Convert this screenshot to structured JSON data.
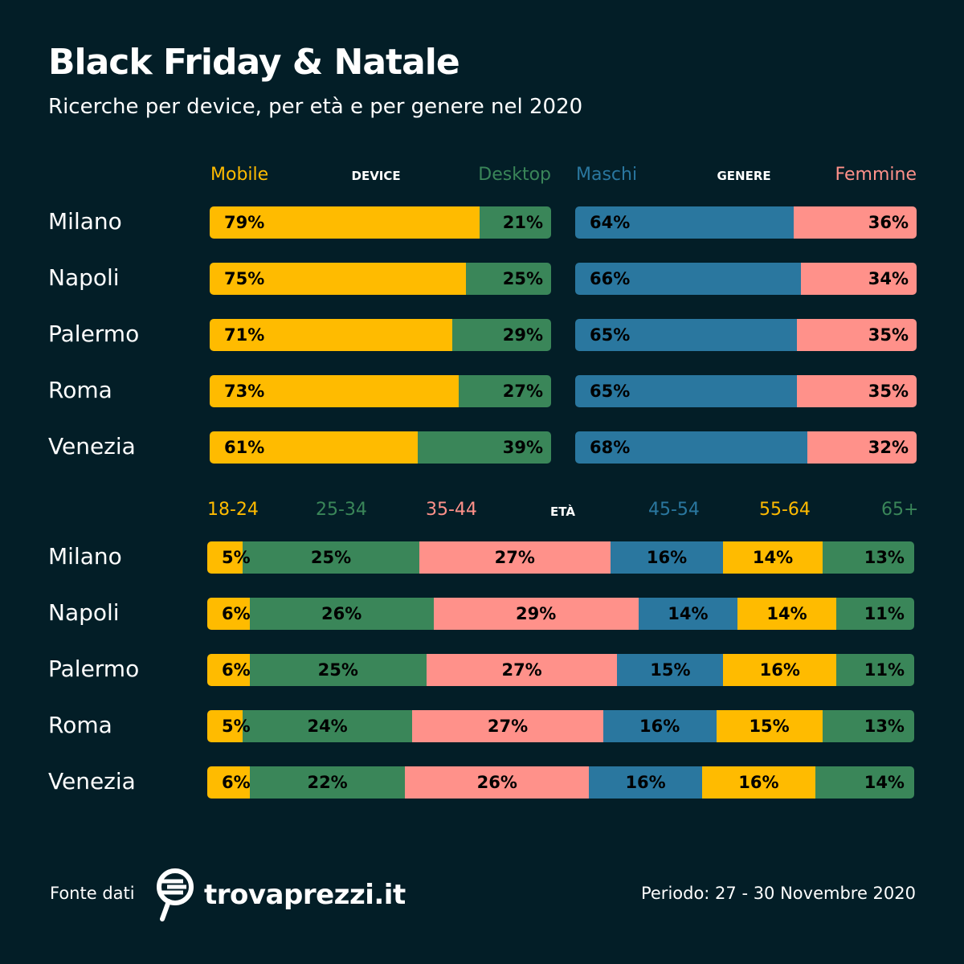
{
  "title": "Black Friday & Natale",
  "subtitle": "Ricerche per device, per età e per genere nel 2020",
  "colors": {
    "background": "#031e27",
    "yellow": "#ffbb00",
    "green": "#3a8659",
    "pink": "#ff918a",
    "blue": "#2a779f"
  },
  "chart_data": [
    {
      "type": "bar",
      "stacked": true,
      "orientation": "horizontal",
      "title": "DEVICE",
      "categories": [
        "Milano",
        "Napoli",
        "Palermo",
        "Roma",
        "Venezia"
      ],
      "series": [
        {
          "name": "Mobile",
          "color": "#ffbb00",
          "values": [
            79,
            75,
            71,
            73,
            61
          ]
        },
        {
          "name": "Desktop",
          "color": "#3a8659",
          "values": [
            21,
            25,
            29,
            27,
            39
          ]
        }
      ]
    },
    {
      "type": "bar",
      "stacked": true,
      "orientation": "horizontal",
      "title": "GENERE",
      "categories": [
        "Milano",
        "Napoli",
        "Palermo",
        "Roma",
        "Venezia"
      ],
      "series": [
        {
          "name": "Maschi",
          "color": "#2a779f",
          "values": [
            64,
            66,
            65,
            65,
            68
          ]
        },
        {
          "name": "Femmine",
          "color": "#ff918a",
          "values": [
            36,
            34,
            35,
            35,
            32
          ]
        }
      ]
    },
    {
      "type": "bar",
      "stacked": true,
      "orientation": "horizontal",
      "title": "ETÀ",
      "categories": [
        "Milano",
        "Napoli",
        "Palermo",
        "Roma",
        "Venezia"
      ],
      "series": [
        {
          "name": "18-24",
          "color": "#ffbb00",
          "values": [
            5,
            6,
            6,
            5,
            6
          ]
        },
        {
          "name": "25-34",
          "color": "#3a8659",
          "values": [
            25,
            26,
            25,
            24,
            22
          ]
        },
        {
          "name": "35-44",
          "color": "#ff918a",
          "values": [
            27,
            29,
            27,
            27,
            26
          ]
        },
        {
          "name": "45-54",
          "color": "#2a779f",
          "values": [
            16,
            14,
            15,
            16,
            16
          ]
        },
        {
          "name": "55-64",
          "color": "#ffbb00",
          "values": [
            14,
            14,
            16,
            15,
            16
          ]
        },
        {
          "name": "65+",
          "color": "#3a8659",
          "values": [
            13,
            11,
            11,
            13,
            14
          ]
        }
      ]
    }
  ],
  "footer": {
    "source_label": "Fonte dati",
    "brand": "trovaprezzi.it",
    "period": "Periodo: 27 - 30 Novembre 2020"
  }
}
